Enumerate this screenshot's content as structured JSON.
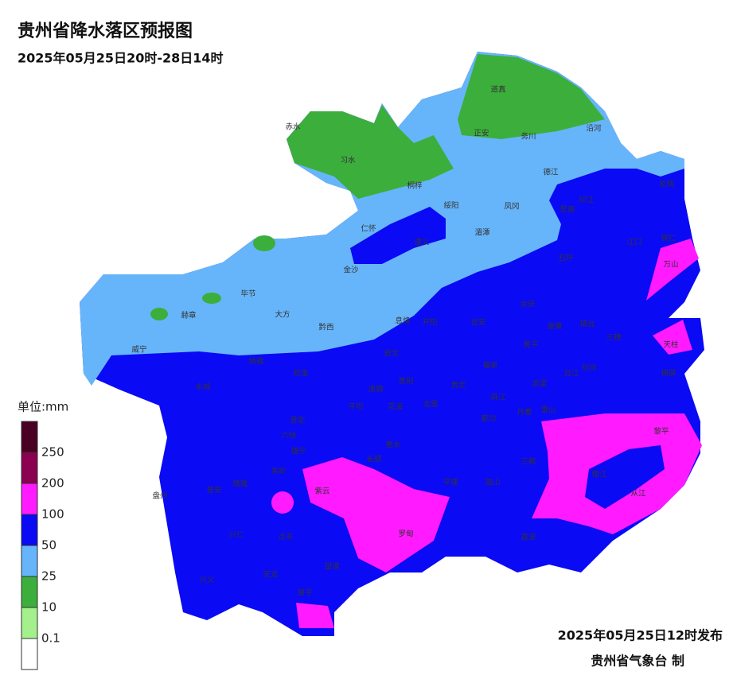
{
  "header": {
    "title": "贵州省降水落区预报图",
    "subtitle": "2025年05月25日20时-28日14时"
  },
  "footer": {
    "issued": "2025年05月25日12时发布",
    "maker": "贵州省气象台 制"
  },
  "legend": {
    "unit": "单位:mm",
    "colors": [
      "#4a0022",
      "#8c0052",
      "#ff1aff",
      "#0a0af5",
      "#66b5fa",
      "#3cae3c",
      "#a3f08c",
      "#ffffff"
    ],
    "labels": [
      "250",
      "200",
      "100",
      "50",
      "25",
      "10",
      "0.1"
    ]
  },
  "places": [
    "赤水",
    "习水",
    "桐梓",
    "道真",
    "正安",
    "务川",
    "沿河",
    "松桃",
    "印江",
    "德江",
    "思南",
    "凤冈",
    "绥阳",
    "湄潭",
    "仁怀",
    "遵义",
    "金沙",
    "江口",
    "铜仁",
    "万山",
    "石阡",
    "毕节",
    "大方",
    "黔西",
    "赫章",
    "息烽",
    "开阳",
    "瓮安",
    "余庆",
    "施秉",
    "镇远",
    "三穗",
    "天柱",
    "威宁",
    "黄平",
    "纳雍",
    "修文",
    "织金",
    "福泉",
    "台江",
    "剑河",
    "锦屏",
    "水城",
    "清镇",
    "贵阳",
    "龙里",
    "贵定",
    "凯里",
    "麻江",
    "平坝",
    "花溪",
    "普定",
    "六枝",
    "惠水",
    "都匀",
    "丹寨",
    "雷山",
    "长顺",
    "镇宁",
    "黎平",
    "关岭",
    "三都",
    "榕江",
    "从江",
    "紫云",
    "平塘",
    "独山",
    "盘州",
    "普安",
    "晴隆",
    "兴仁",
    "贞丰",
    "罗甸",
    "荔波",
    "望谟",
    "安龙",
    "兴义",
    "册亨"
  ]
}
